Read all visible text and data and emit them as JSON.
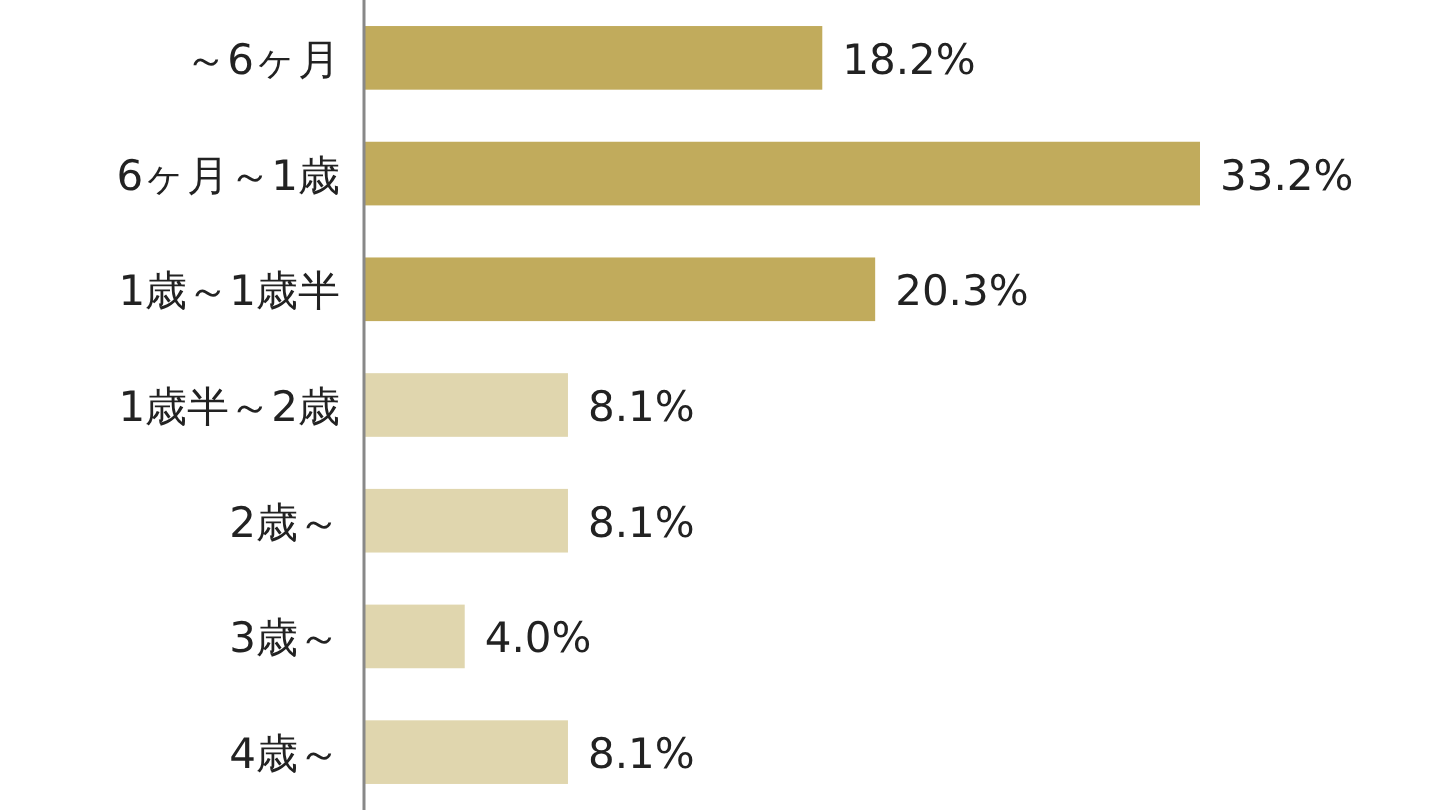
{
  "chart_data": {
    "type": "bar",
    "orientation": "horizontal",
    "categories": [
      "～6ヶ月",
      "6ヶ月～1歳",
      "1歳～1歳半",
      "1歳半～2歳",
      "2歳～",
      "3歳～",
      "4歳～"
    ],
    "values": [
      18.2,
      33.2,
      20.3,
      8.1,
      8.1,
      4.0,
      8.1
    ],
    "colors": [
      "#c1ab5c",
      "#c1ab5c",
      "#c1ab5c",
      "#e0d6ae",
      "#e0d6ae",
      "#e0d6ae",
      "#e0d6ae"
    ],
    "value_labels": [
      "18.2%",
      "33.2%",
      "20.3%",
      "8.1%",
      "8.1%",
      "4.0%",
      "8.1%"
    ]
  }
}
